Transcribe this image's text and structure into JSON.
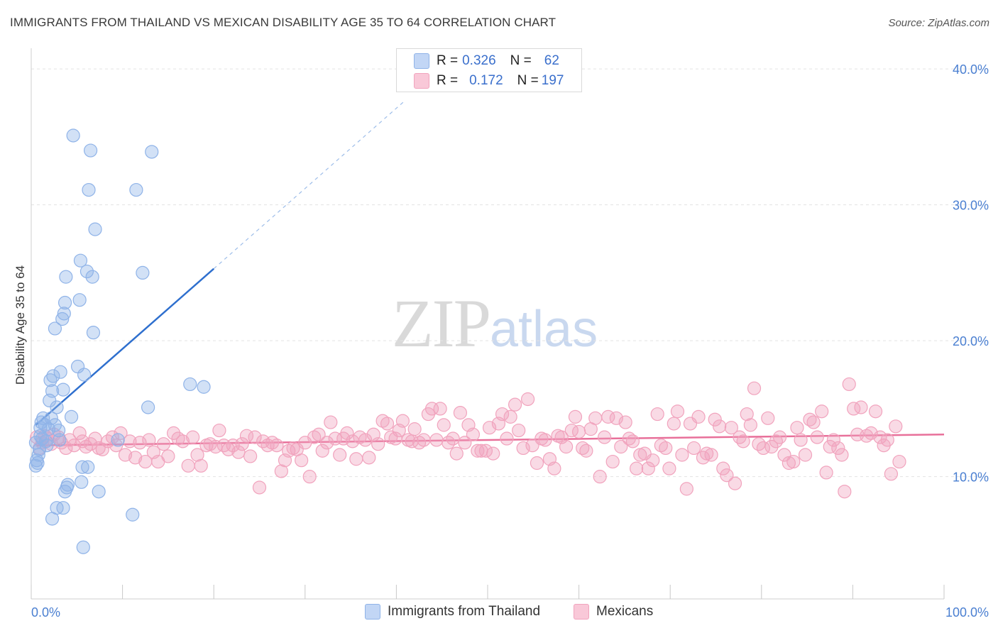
{
  "title": "IMMIGRANTS FROM THAILAND VS MEXICAN DISABILITY AGE 35 TO 64 CORRELATION CHART",
  "source": "Source: ZipAtlas.com",
  "watermark": {
    "zip": "ZIP",
    "atlas": "atlas"
  },
  "legend": {
    "series1": {
      "r_label": "R = ",
      "r_value": "0.326",
      "n_label": "N = ",
      "n_value": "62"
    },
    "series2": {
      "r_label": "R = ",
      "r_value": "0.172",
      "n_label": "N = ",
      "n_value": "197"
    }
  },
  "bottom_legend": {
    "series1": "Immigrants from Thailand",
    "series2": "Mexicans"
  },
  "chart_data": {
    "type": "scatter",
    "title": "IMMIGRANTS FROM THAILAND VS MEXICAN DISABILITY AGE 35 TO 64 CORRELATION CHART",
    "xlabel": "",
    "ylabel": "Disability Age 35 to 64",
    "xlim": [
      0,
      100
    ],
    "ylim": [
      1,
      41
    ],
    "x_tick_labels": [
      "0.0%",
      "100.0%"
    ],
    "y_ticks": [
      10,
      20,
      30,
      40
    ],
    "y_tick_labels": [
      "10.0%",
      "20.0%",
      "30.0%",
      "40.0%"
    ],
    "colors": {
      "series1": "#8fb3e8",
      "series2": "#f1a3bd",
      "line1": "#2e6fce",
      "line2": "#e8709a",
      "axis_text": "#4a7fd1"
    },
    "series": [
      {
        "name": "Immigrants from Thailand",
        "R": 0.326,
        "N": 62,
        "trend": {
          "x0": 0.5,
          "y0": 13.8,
          "x1": 20,
          "y1": 25.3,
          "dashed_to_x": 41,
          "dashed_to_y": 37.7
        },
        "points": [
          [
            0.5,
            12.5
          ],
          [
            0.6,
            11.2
          ],
          [
            0.5,
            10.8
          ],
          [
            0.7,
            11.0
          ],
          [
            0.8,
            11.6
          ],
          [
            0.9,
            12.0
          ],
          [
            1.0,
            13.0
          ],
          [
            1.1,
            14.0
          ],
          [
            1.3,
            14.3
          ],
          [
            1.5,
            13.8
          ],
          [
            1.6,
            12.6
          ],
          [
            1.7,
            12.3
          ],
          [
            1.9,
            13.5
          ],
          [
            2.0,
            15.6
          ],
          [
            2.1,
            17.1
          ],
          [
            2.2,
            14.3
          ],
          [
            2.3,
            16.3
          ],
          [
            2.4,
            17.4
          ],
          [
            2.6,
            13.8
          ],
          [
            2.8,
            15.1
          ],
          [
            3.0,
            13.4
          ],
          [
            3.1,
            12.7
          ],
          [
            3.2,
            17.7
          ],
          [
            3.4,
            21.6
          ],
          [
            3.5,
            16.4
          ],
          [
            3.6,
            22.0
          ],
          [
            3.7,
            22.8
          ],
          [
            3.8,
            24.7
          ],
          [
            4.4,
            14.4
          ],
          [
            4.6,
            35.1
          ],
          [
            5.1,
            18.1
          ],
          [
            5.3,
            23.0
          ],
          [
            5.4,
            25.9
          ],
          [
            5.6,
            10.7
          ],
          [
            5.8,
            17.5
          ],
          [
            6.1,
            25.1
          ],
          [
            6.3,
            31.1
          ],
          [
            6.5,
            34.0
          ],
          [
            6.7,
            24.7
          ],
          [
            6.8,
            20.6
          ],
          [
            7.0,
            28.2
          ],
          [
            7.4,
            8.9
          ],
          [
            9.5,
            12.7
          ],
          [
            11.1,
            7.2
          ],
          [
            11.5,
            31.1
          ],
          [
            12.2,
            25.0
          ],
          [
            12.8,
            15.1
          ],
          [
            13.2,
            33.9
          ],
          [
            17.4,
            16.8
          ],
          [
            18.9,
            16.6
          ],
          [
            2.3,
            6.9
          ],
          [
            2.8,
            7.7
          ],
          [
            3.5,
            7.7
          ],
          [
            3.7,
            8.9
          ],
          [
            3.9,
            9.2
          ],
          [
            4.0,
            9.4
          ],
          [
            5.5,
            9.6
          ],
          [
            6.2,
            10.7
          ],
          [
            5.7,
            4.8
          ],
          [
            1.2,
            12.8
          ],
          [
            2.6,
            20.9
          ],
          [
            1.0,
            13.6
          ]
        ]
      },
      {
        "name": "Mexicans",
        "R": 0.172,
        "N": 197,
        "trend": {
          "x0": 0.5,
          "y0": 12.3,
          "x1": 100,
          "y1": 13.1
        },
        "points": [
          [
            0.6,
            12.9
          ],
          [
            0.9,
            12.1
          ],
          [
            1.2,
            12.5
          ],
          [
            1.5,
            13.0
          ],
          [
            1.8,
            12.8
          ],
          [
            2.2,
            12.4
          ],
          [
            2.5,
            13.1
          ],
          [
            3.0,
            12.9
          ],
          [
            3.3,
            12.5
          ],
          [
            3.8,
            12.1
          ],
          [
            4.2,
            12.7
          ],
          [
            4.7,
            12.3
          ],
          [
            5.3,
            13.2
          ],
          [
            5.6,
            12.6
          ],
          [
            6.0,
            12.2
          ],
          [
            6.5,
            12.4
          ],
          [
            7.0,
            12.8
          ],
          [
            7.4,
            12.1
          ],
          [
            7.8,
            12.0
          ],
          [
            8.4,
            12.6
          ],
          [
            8.9,
            12.9
          ],
          [
            9.3,
            12.3
          ],
          [
            9.8,
            13.2
          ],
          [
            10.3,
            11.6
          ],
          [
            10.8,
            12.6
          ],
          [
            11.4,
            11.4
          ],
          [
            11.9,
            12.5
          ],
          [
            12.5,
            11.1
          ],
          [
            12.9,
            12.7
          ],
          [
            13.4,
            11.8
          ],
          [
            13.9,
            11.1
          ],
          [
            14.5,
            12.4
          ],
          [
            15.0,
            11.5
          ],
          [
            15.6,
            13.2
          ],
          [
            16.1,
            12.8
          ],
          [
            16.6,
            12.6
          ],
          [
            17.2,
            10.8
          ],
          [
            17.7,
            12.9
          ],
          [
            18.2,
            11.6
          ],
          [
            18.6,
            10.8
          ],
          [
            19.2,
            12.3
          ],
          [
            19.6,
            12.4
          ],
          [
            20.2,
            12.2
          ],
          [
            20.6,
            13.4
          ],
          [
            21.1,
            12.3
          ],
          [
            21.6,
            12.0
          ],
          [
            22.1,
            12.3
          ],
          [
            22.7,
            11.8
          ],
          [
            23.1,
            12.4
          ],
          [
            23.6,
            13.0
          ],
          [
            24.0,
            11.5
          ],
          [
            24.5,
            12.9
          ],
          [
            25.0,
            9.2
          ],
          [
            25.4,
            12.6
          ],
          [
            25.9,
            12.3
          ],
          [
            26.4,
            12.5
          ],
          [
            26.9,
            12.3
          ],
          [
            27.4,
            10.4
          ],
          [
            27.8,
            11.2
          ],
          [
            28.2,
            11.9
          ],
          [
            28.7,
            12.1
          ],
          [
            29.1,
            12.0
          ],
          [
            29.6,
            11.2
          ],
          [
            30.0,
            12.5
          ],
          [
            30.5,
            10.0
          ],
          [
            31.0,
            12.9
          ],
          [
            31.5,
            13.1
          ],
          [
            31.9,
            11.9
          ],
          [
            32.4,
            12.5
          ],
          [
            32.8,
            14.0
          ],
          [
            33.3,
            12.8
          ],
          [
            33.8,
            11.6
          ],
          [
            34.2,
            12.8
          ],
          [
            34.6,
            13.2
          ],
          [
            35.2,
            12.6
          ],
          [
            35.6,
            11.3
          ],
          [
            36.0,
            12.9
          ],
          [
            36.6,
            12.7
          ],
          [
            37.0,
            11.4
          ],
          [
            37.5,
            13.1
          ],
          [
            38.0,
            12.4
          ],
          [
            38.5,
            14.1
          ],
          [
            39.0,
            13.9
          ],
          [
            39.4,
            12.9
          ],
          [
            39.9,
            12.8
          ],
          [
            40.3,
            13.4
          ],
          [
            40.7,
            14.1
          ],
          [
            41.3,
            12.7
          ],
          [
            41.7,
            12.6
          ],
          [
            42.0,
            13.5
          ],
          [
            42.5,
            12.5
          ],
          [
            43.0,
            12.7
          ],
          [
            43.5,
            14.6
          ],
          [
            43.9,
            15.0
          ],
          [
            44.4,
            12.7
          ],
          [
            44.8,
            15.0
          ],
          [
            45.2,
            13.8
          ],
          [
            45.7,
            12.5
          ],
          [
            46.2,
            12.8
          ],
          [
            46.6,
            11.7
          ],
          [
            47.0,
            14.7
          ],
          [
            47.5,
            12.5
          ],
          [
            47.9,
            13.8
          ],
          [
            48.4,
            13.1
          ],
          [
            48.9,
            11.9
          ],
          [
            49.3,
            11.9
          ],
          [
            49.8,
            11.9
          ],
          [
            50.2,
            13.6
          ],
          [
            50.6,
            11.7
          ],
          [
            51.2,
            13.9
          ],
          [
            51.6,
            14.6
          ],
          [
            52.1,
            12.8
          ],
          [
            52.5,
            14.4
          ],
          [
            53.0,
            15.3
          ],
          [
            53.4,
            13.4
          ],
          [
            53.9,
            12.1
          ],
          [
            54.4,
            15.7
          ],
          [
            54.9,
            12.3
          ],
          [
            55.4,
            11.0
          ],
          [
            55.9,
            12.8
          ],
          [
            56.3,
            12.7
          ],
          [
            56.8,
            11.3
          ],
          [
            57.3,
            10.6
          ],
          [
            57.7,
            13.0
          ],
          [
            58.1,
            12.9
          ],
          [
            58.6,
            12.2
          ],
          [
            59.2,
            13.4
          ],
          [
            59.6,
            14.4
          ],
          [
            60.0,
            13.3
          ],
          [
            60.4,
            12.1
          ],
          [
            60.8,
            11.9
          ],
          [
            61.3,
            13.5
          ],
          [
            61.8,
            14.3
          ],
          [
            62.3,
            10.0
          ],
          [
            62.8,
            12.9
          ],
          [
            63.2,
            14.4
          ],
          [
            63.7,
            11.1
          ],
          [
            64.1,
            14.3
          ],
          [
            64.6,
            12.2
          ],
          [
            65.1,
            14.0
          ],
          [
            65.5,
            12.8
          ],
          [
            65.9,
            12.6
          ],
          [
            66.3,
            10.6
          ],
          [
            66.7,
            11.6
          ],
          [
            67.2,
            11.7
          ],
          [
            67.6,
            10.6
          ],
          [
            68.1,
            11.2
          ],
          [
            68.6,
            14.6
          ],
          [
            69.0,
            12.3
          ],
          [
            69.5,
            12.1
          ],
          [
            69.9,
            10.6
          ],
          [
            70.4,
            13.9
          ],
          [
            70.8,
            14.8
          ],
          [
            71.3,
            11.6
          ],
          [
            71.8,
            9.1
          ],
          [
            72.2,
            13.9
          ],
          [
            72.6,
            12.1
          ],
          [
            73.1,
            14.4
          ],
          [
            73.6,
            11.4
          ],
          [
            74.0,
            11.7
          ],
          [
            74.5,
            11.6
          ],
          [
            74.9,
            14.2
          ],
          [
            75.4,
            13.7
          ],
          [
            75.8,
            10.6
          ],
          [
            76.2,
            10.1
          ],
          [
            76.7,
            13.6
          ],
          [
            77.1,
            9.5
          ],
          [
            77.6,
            12.9
          ],
          [
            78.0,
            12.6
          ],
          [
            78.4,
            14.6
          ],
          [
            78.8,
            13.8
          ],
          [
            79.2,
            16.5
          ],
          [
            79.7,
            12.4
          ],
          [
            80.2,
            12.1
          ],
          [
            80.7,
            14.3
          ],
          [
            81.1,
            12.2
          ],
          [
            81.6,
            12.6
          ],
          [
            82.0,
            12.9
          ],
          [
            82.5,
            11.6
          ],
          [
            83.0,
            11.0
          ],
          [
            83.5,
            11.1
          ],
          [
            83.9,
            13.6
          ],
          [
            84.3,
            12.7
          ],
          [
            84.8,
            11.6
          ],
          [
            85.3,
            14.2
          ],
          [
            85.7,
            14.0
          ],
          [
            86.1,
            12.9
          ],
          [
            86.6,
            14.8
          ],
          [
            87.1,
            10.3
          ],
          [
            87.5,
            12.2
          ],
          [
            87.9,
            12.7
          ],
          [
            88.4,
            12.1
          ],
          [
            88.8,
            11.6
          ],
          [
            89.1,
            8.9
          ],
          [
            89.6,
            16.8
          ],
          [
            90.1,
            15.0
          ],
          [
            90.5,
            13.1
          ],
          [
            90.9,
            15.1
          ],
          [
            91.5,
            13.0
          ],
          [
            92.0,
            13.2
          ],
          [
            92.5,
            14.8
          ],
          [
            93.0,
            12.9
          ],
          [
            93.4,
            12.3
          ],
          [
            93.8,
            12.7
          ],
          [
            94.2,
            10.2
          ],
          [
            94.7,
            13.7
          ],
          [
            95.1,
            11.1
          ]
        ]
      }
    ]
  }
}
